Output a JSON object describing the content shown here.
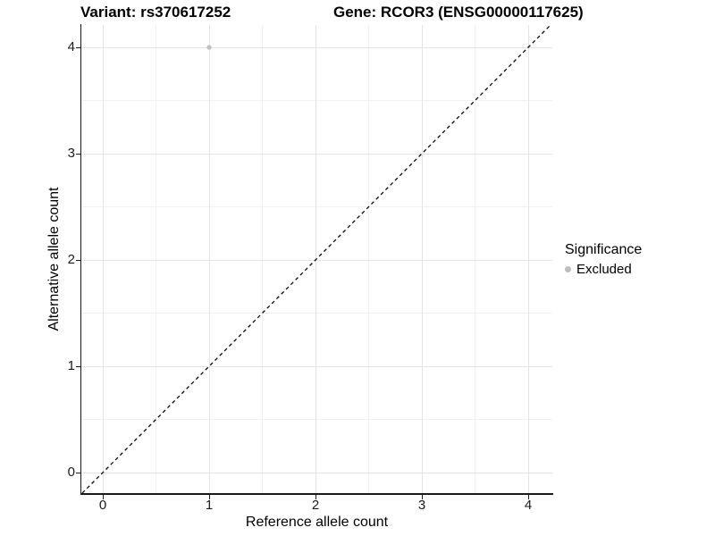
{
  "chart_data": {
    "type": "scatter",
    "titles": {
      "variant": "Variant: rs370617252",
      "gene": "Gene: RCOR3 (ENSG00000117625)"
    },
    "xlabel": "Reference allele count",
    "ylabel": "Alternative allele count",
    "xlim": [
      -0.2,
      4.22
    ],
    "ylim": [
      -0.2,
      4.21
    ],
    "x_major_ticks": [
      0,
      1,
      2,
      3,
      4
    ],
    "y_major_ticks": [
      0,
      1,
      2,
      3,
      4
    ],
    "x_minor_gridlines": [
      0.5,
      1.5,
      2.5,
      3.5
    ],
    "y_minor_gridlines": [
      0.5,
      1.5,
      2.5,
      3.5
    ],
    "grid": "major and minor, light gray on white",
    "series": [
      {
        "name": "Excluded",
        "marker": "circle",
        "color": "#bebebe",
        "points": [
          {
            "x": 1,
            "y": 4
          }
        ]
      }
    ],
    "reference_line": {
      "type": "identity y=x",
      "style": "dashed",
      "color": "#000000"
    },
    "legend": {
      "title": "Significance",
      "position": "right",
      "items": [
        {
          "label": "Excluded",
          "color": "#bebebe",
          "marker": "circle"
        }
      ]
    }
  },
  "colors": {
    "background": "#ffffff",
    "grid_major": "#e4e4e4",
    "grid_minor": "#f1f1f1",
    "axis_line": "#1a1a1a",
    "text": "#000000",
    "point": "#bebebe",
    "reference_line": "#000000"
  }
}
